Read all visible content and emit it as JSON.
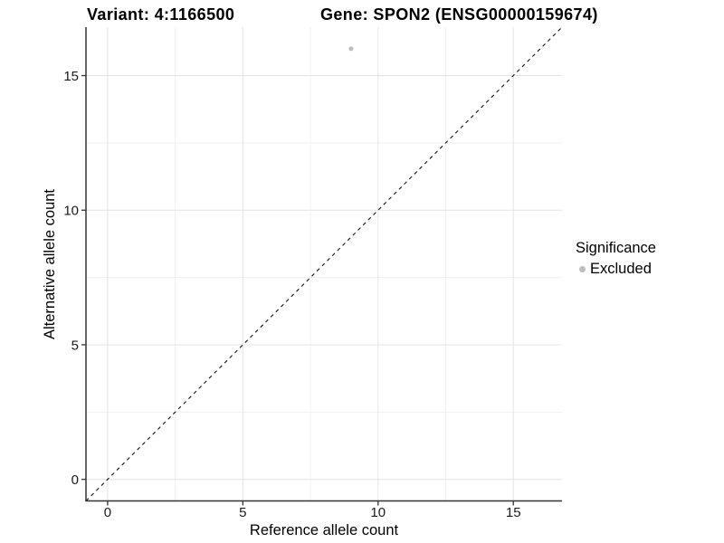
{
  "figure": {
    "title_left": "Variant: 4:1166500",
    "title_right": "Gene: SPON2 (ENSG00000159674)"
  },
  "chart_data": {
    "type": "scatter",
    "titles": [
      "Variant: 4:1166500",
      "Gene: SPON2 (ENSG00000159674)"
    ],
    "xlabel": "Reference allele count",
    "ylabel": "Alternative allele count",
    "xlim": [
      -0.8,
      16.8
    ],
    "ylim": [
      -0.8,
      16.8
    ],
    "xticks": [
      0,
      5,
      10,
      15
    ],
    "yticks": [
      0,
      5,
      10,
      15
    ],
    "xticks_minor": [
      2.5,
      7.5,
      12.5
    ],
    "yticks_minor": [
      2.5,
      7.5,
      12.5
    ],
    "grid": "major+minor",
    "identity_line": {
      "style": "dashed",
      "equation": "y = x"
    },
    "series": [
      {
        "name": "Excluded",
        "color": "#bebebe",
        "points": [
          {
            "x": 9,
            "y": 16
          }
        ]
      }
    ],
    "legend": {
      "title": "Significance",
      "position": "right",
      "entries": [
        {
          "label": "Excluded",
          "color": "#bebebe"
        }
      ]
    }
  },
  "colors": {
    "background": "#ffffff",
    "grid_major": "#e4e4e4",
    "grid_minor": "#f1f1f1",
    "axis_line": "#333333",
    "tick_text": "#1a1a1a",
    "identity_line": "#111111"
  }
}
